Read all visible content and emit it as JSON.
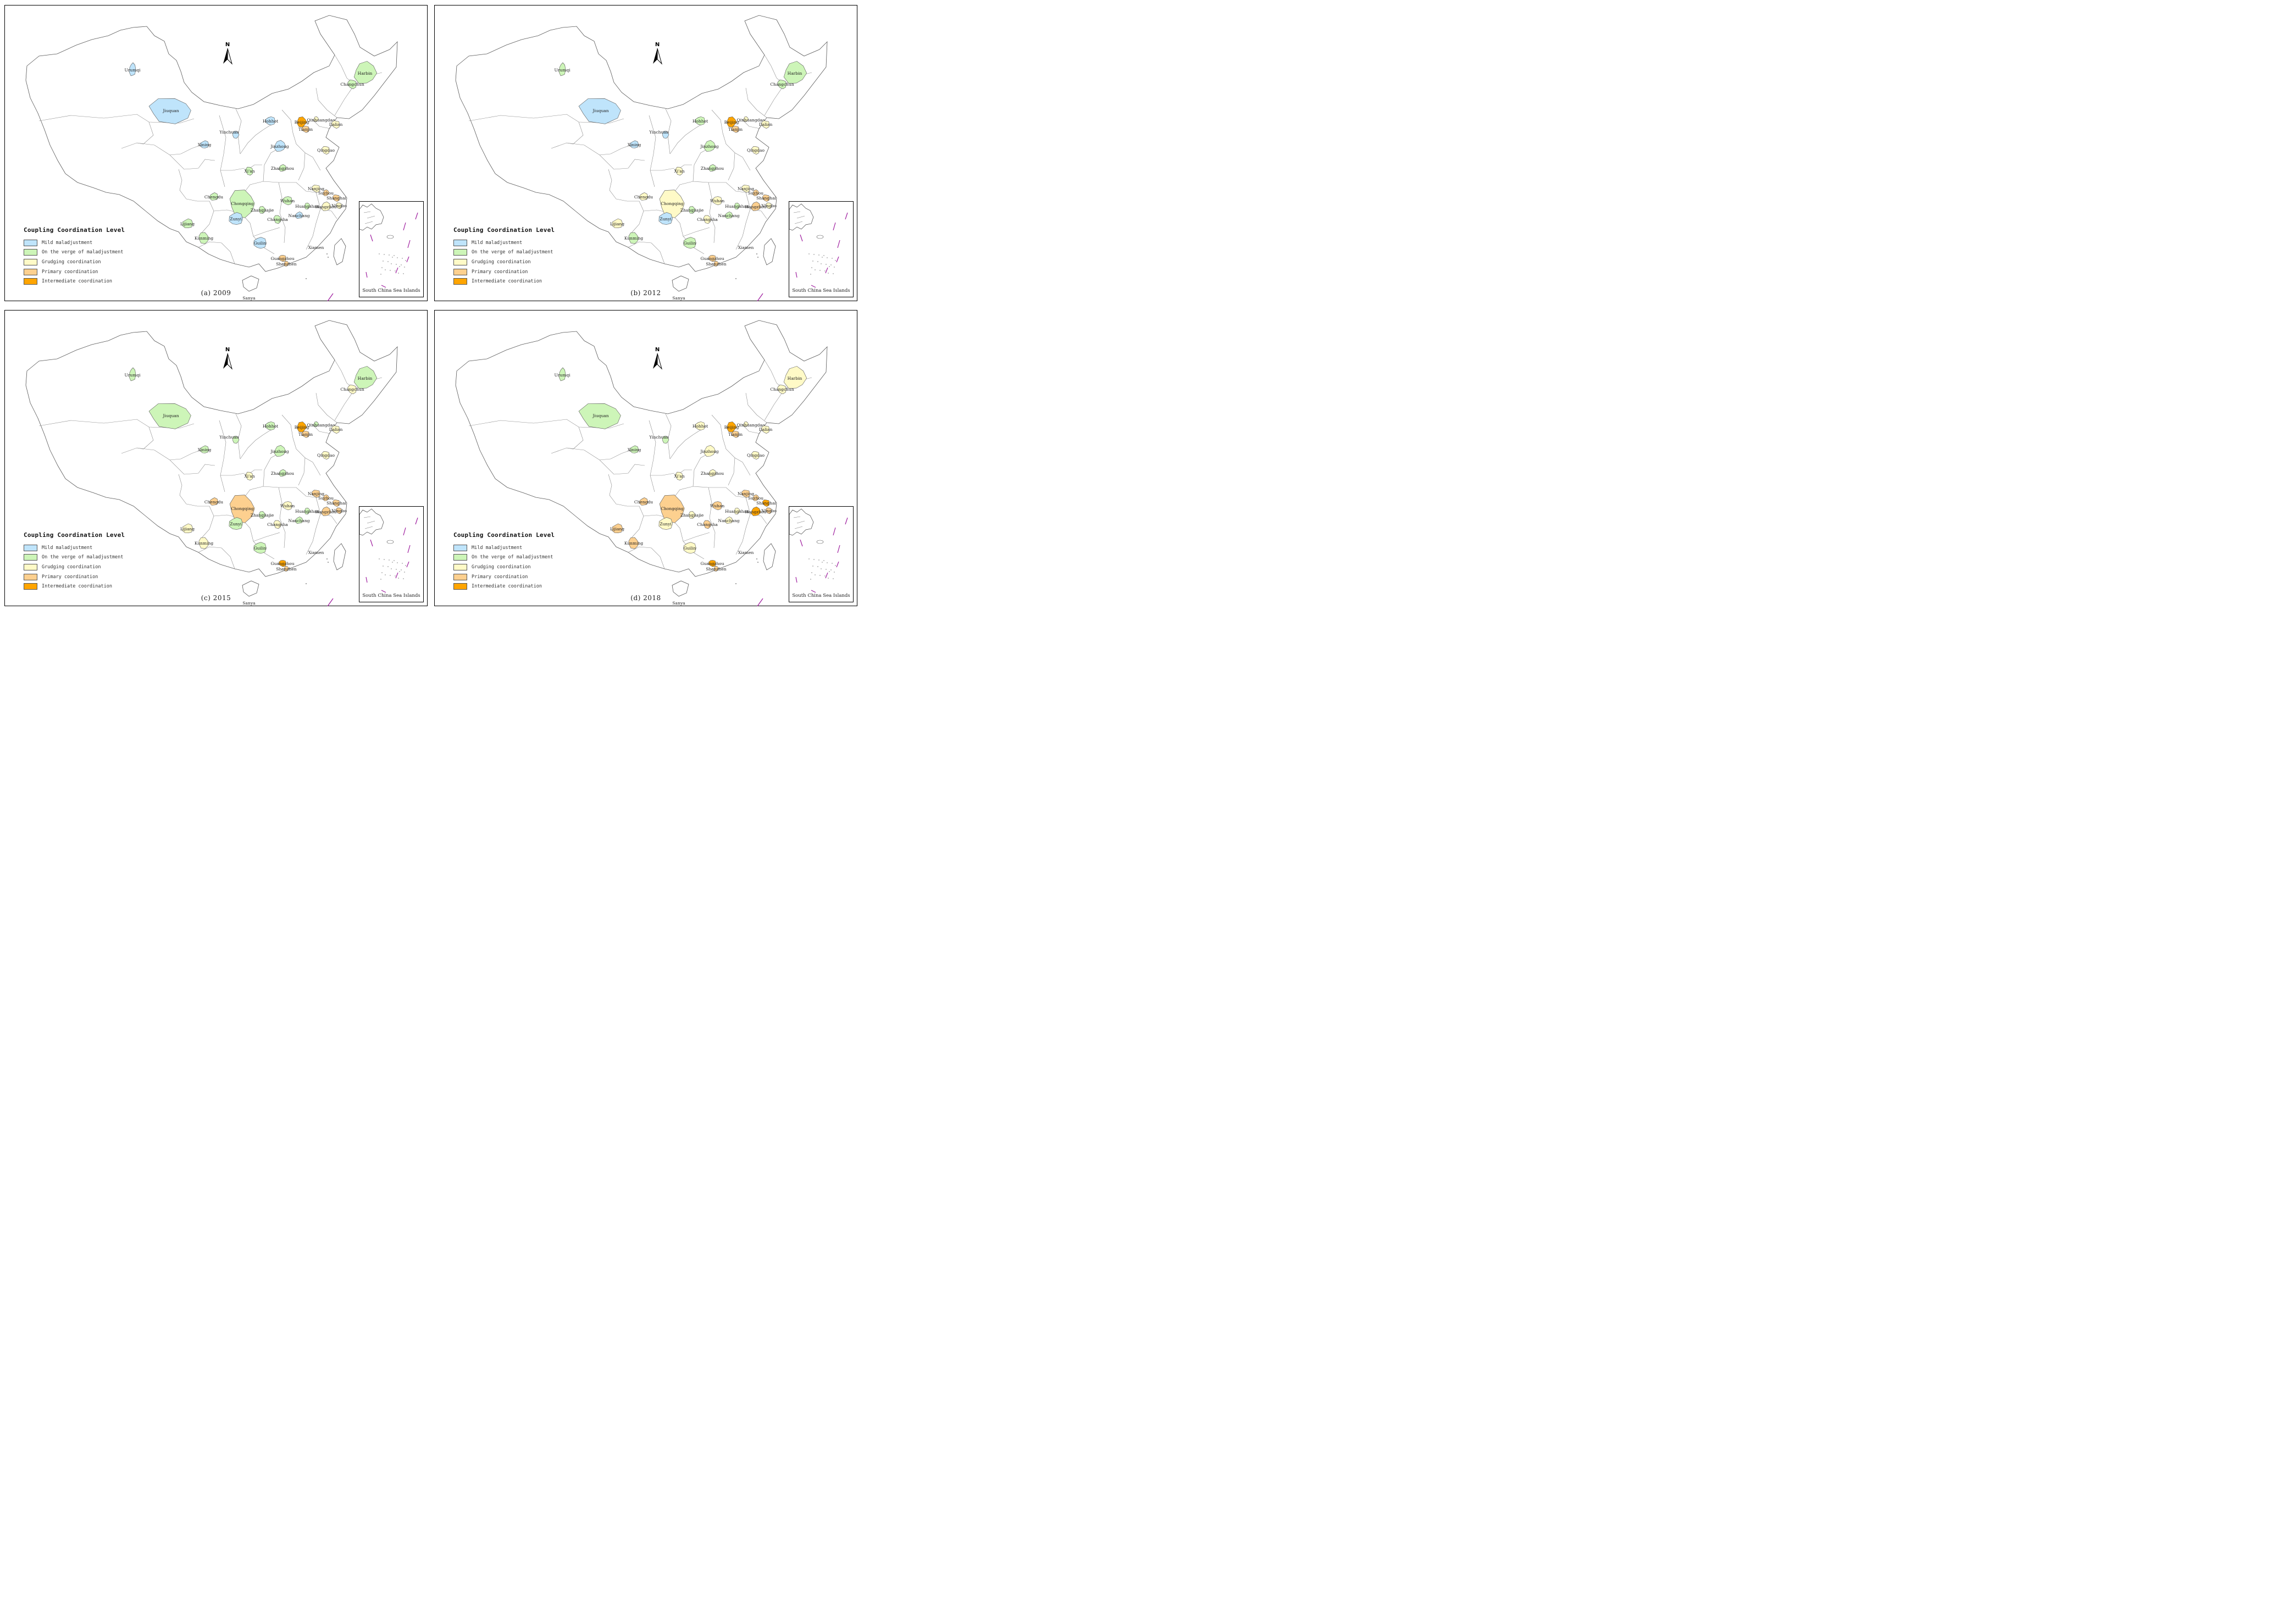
{
  "legend": {
    "title": "Coupling Coordination Level",
    "levels": [
      {
        "label": "Mild maladjustment",
        "color": "#bfe4fb"
      },
      {
        "label": "On the verge of maladjustment",
        "color": "#cdf5b8"
      },
      {
        "label": "Grudging coordination",
        "color": "#fffac7"
      },
      {
        "label": "Primary coordination",
        "color": "#fdd08f"
      },
      {
        "label": "Intermediate coordination",
        "color": "#ffa500"
      }
    ]
  },
  "north_label": "N",
  "inset_label": "South China Sea Islands",
  "panels": [
    {
      "caption": "(a)  2009",
      "levels": {
        "Urumqi": 0,
        "Jiuquan": 0,
        "Xining": 0,
        "Yinchuan": 0,
        "Hohhot": 0,
        "Beijing": 4,
        "Tianjin": 3,
        "Qinhuangdao": 2,
        "Dalian": 2,
        "Jinzhong": 0,
        "Qingdao": 2,
        "Zhangzhou": 1,
        "Xi'an": 1,
        "Chengdu": 1,
        "Chongqing": 1,
        "Zunyi": 0,
        "Zhangjiajie": 1,
        "Wuhan": 1,
        "Huangshan": 1,
        "Nanjing": 2,
        "Suzhou": 3,
        "Shanghai": 3,
        "Hangzhou": 2,
        "Ningbo": 2,
        "Nanchang": 0,
        "Changsha": 1,
        "Lijiang": 1,
        "Kunming": 1,
        "Guilin": 0,
        "Xiamen": null,
        "Guangzhou": 3,
        "Shenzhen": 3,
        "Sanya": null,
        "Harbin": 1,
        "Changchun": 1
      }
    },
    {
      "caption": "(b)  2012",
      "levels": {
        "Urumqi": 1,
        "Jiuquan": 0,
        "Xining": 0,
        "Yinchuan": 0,
        "Hohhot": 1,
        "Beijing": 4,
        "Tianjin": 3,
        "Qinhuangdao": 2,
        "Dalian": 2,
        "Jinzhong": 1,
        "Qingdao": 2,
        "Zhangzhou": 1,
        "Xi'an": 2,
        "Chengdu": 2,
        "Chongqing": 2,
        "Zunyi": 0,
        "Zhangjiajie": 1,
        "Wuhan": 2,
        "Huangshan": 1,
        "Nanjing": 2,
        "Suzhou": 3,
        "Shanghai": 3,
        "Hangzhou": 3,
        "Ningbo": 2,
        "Nanchang": 1,
        "Changsha": 2,
        "Lijiang": 2,
        "Kunming": 1,
        "Guilin": 1,
        "Xiamen": null,
        "Guangzhou": 3,
        "Shenzhen": 3,
        "Sanya": null,
        "Harbin": 1,
        "Changchun": 1
      }
    },
    {
      "caption": "(c)  2015",
      "levels": {
        "Urumqi": 1,
        "Jiuquan": 1,
        "Xining": 1,
        "Yinchuan": 1,
        "Hohhot": 1,
        "Beijing": 4,
        "Tianjin": 3,
        "Qinhuangdao": 1,
        "Dalian": 2,
        "Jinzhong": 1,
        "Qingdao": 2,
        "Zhangzhou": 1,
        "Xi'an": 2,
        "Chengdu": 3,
        "Chongqing": 3,
        "Zunyi": 1,
        "Zhangjiajie": 1,
        "Wuhan": 2,
        "Huangshan": 1,
        "Nanjing": 3,
        "Suzhou": 3,
        "Shanghai": 3,
        "Hangzhou": 3,
        "Ningbo": 3,
        "Nanchang": 1,
        "Changsha": 2,
        "Lijiang": 2,
        "Kunming": 2,
        "Guilin": 1,
        "Xiamen": null,
        "Guangzhou": 4,
        "Shenzhen": 3,
        "Sanya": null,
        "Harbin": 1,
        "Changchun": 2
      }
    },
    {
      "caption": "(d)  2018",
      "levels": {
        "Urumqi": 1,
        "Jiuquan": 1,
        "Xining": 1,
        "Yinchuan": 1,
        "Hohhot": 2,
        "Beijing": 4,
        "Tianjin": 3,
        "Qinhuangdao": 2,
        "Dalian": 2,
        "Jinzhong": 2,
        "Qingdao": 2,
        "Zhangzhou": 2,
        "Xi'an": 2,
        "Chengdu": 3,
        "Chongqing": 3,
        "Zunyi": 2,
        "Zhangjiajie": 2,
        "Wuhan": 3,
        "Huangshan": 2,
        "Nanjing": 3,
        "Suzhou": 3,
        "Shanghai": 4,
        "Hangzhou": 4,
        "Ningbo": 3,
        "Nanchang": 2,
        "Changsha": 3,
        "Lijiang": 3,
        "Kunming": 3,
        "Guilin": 2,
        "Xiamen": null,
        "Guangzhou": 4,
        "Shenzhen": 3,
        "Sanya": null,
        "Harbin": 2,
        "Changchun": 2
      }
    }
  ]
}
